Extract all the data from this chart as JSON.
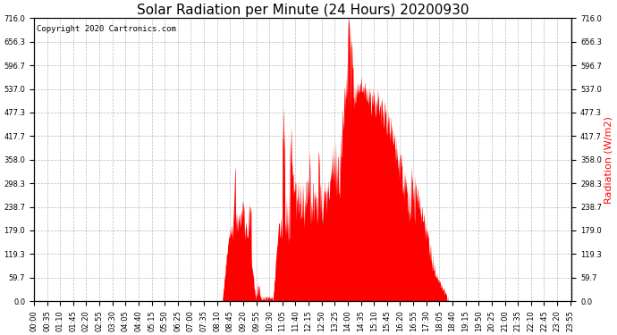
{
  "title": "Solar Radiation per Minute (24 Hours) 20200930",
  "copyright_text": "Copyright 2020 Cartronics.com",
  "ylabel": "Radiation (W/m2)",
  "ylabel_color": "#ff0000",
  "fill_color": "#ff0000",
  "dashed_zero_color": "#ff0000",
  "grid_color": "#aaaaaa",
  "background_color": "#ffffff",
  "ylim": [
    0.0,
    716.0
  ],
  "yticks": [
    0.0,
    59.7,
    119.3,
    179.0,
    238.7,
    298.3,
    358.0,
    417.7,
    477.3,
    537.0,
    596.7,
    656.3,
    716.0
  ],
  "title_fontsize": 11,
  "tick_fontsize": 6,
  "copyright_fontsize": 6.5,
  "ylabel_fontsize": 8,
  "tick_interval_minutes": 35
}
